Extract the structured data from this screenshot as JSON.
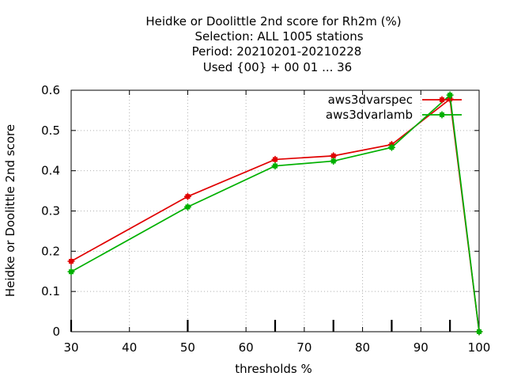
{
  "chart_data": {
    "type": "line",
    "title_lines": [
      "Heidke or Doolittle 2nd score  for Rh2m (%)",
      "Selection: ALL   1005 stations",
      "Period: 20210201-20210228",
      "Used {00} + 00 01 ... 36"
    ],
    "xlabel": "thresholds %",
    "ylabel": "Heidke or Doolittle 2nd score",
    "xlim": [
      30,
      100
    ],
    "ylim": [
      0,
      0.6
    ],
    "xticks": [
      30,
      40,
      50,
      60,
      70,
      80,
      90,
      100
    ],
    "yticks": [
      0,
      0.1,
      0.2,
      0.3,
      0.4,
      0.5,
      0.6
    ],
    "grid": true,
    "legend_position": "top-right",
    "threshold_markers_x": [
      30,
      50,
      65,
      75,
      85,
      95
    ],
    "series": [
      {
        "name": "aws3dvarspec",
        "color": "#e00000",
        "x": [
          30,
          50,
          65,
          75,
          85,
          95,
          100
        ],
        "y": [
          0.175,
          0.336,
          0.428,
          0.437,
          0.465,
          0.578,
          0.0
        ]
      },
      {
        "name": "aws3dvarlamb",
        "color": "#00b000",
        "x": [
          30,
          50,
          65,
          75,
          85,
          95,
          100
        ],
        "y": [
          0.149,
          0.31,
          0.412,
          0.424,
          0.458,
          0.588,
          0.0
        ]
      }
    ]
  }
}
